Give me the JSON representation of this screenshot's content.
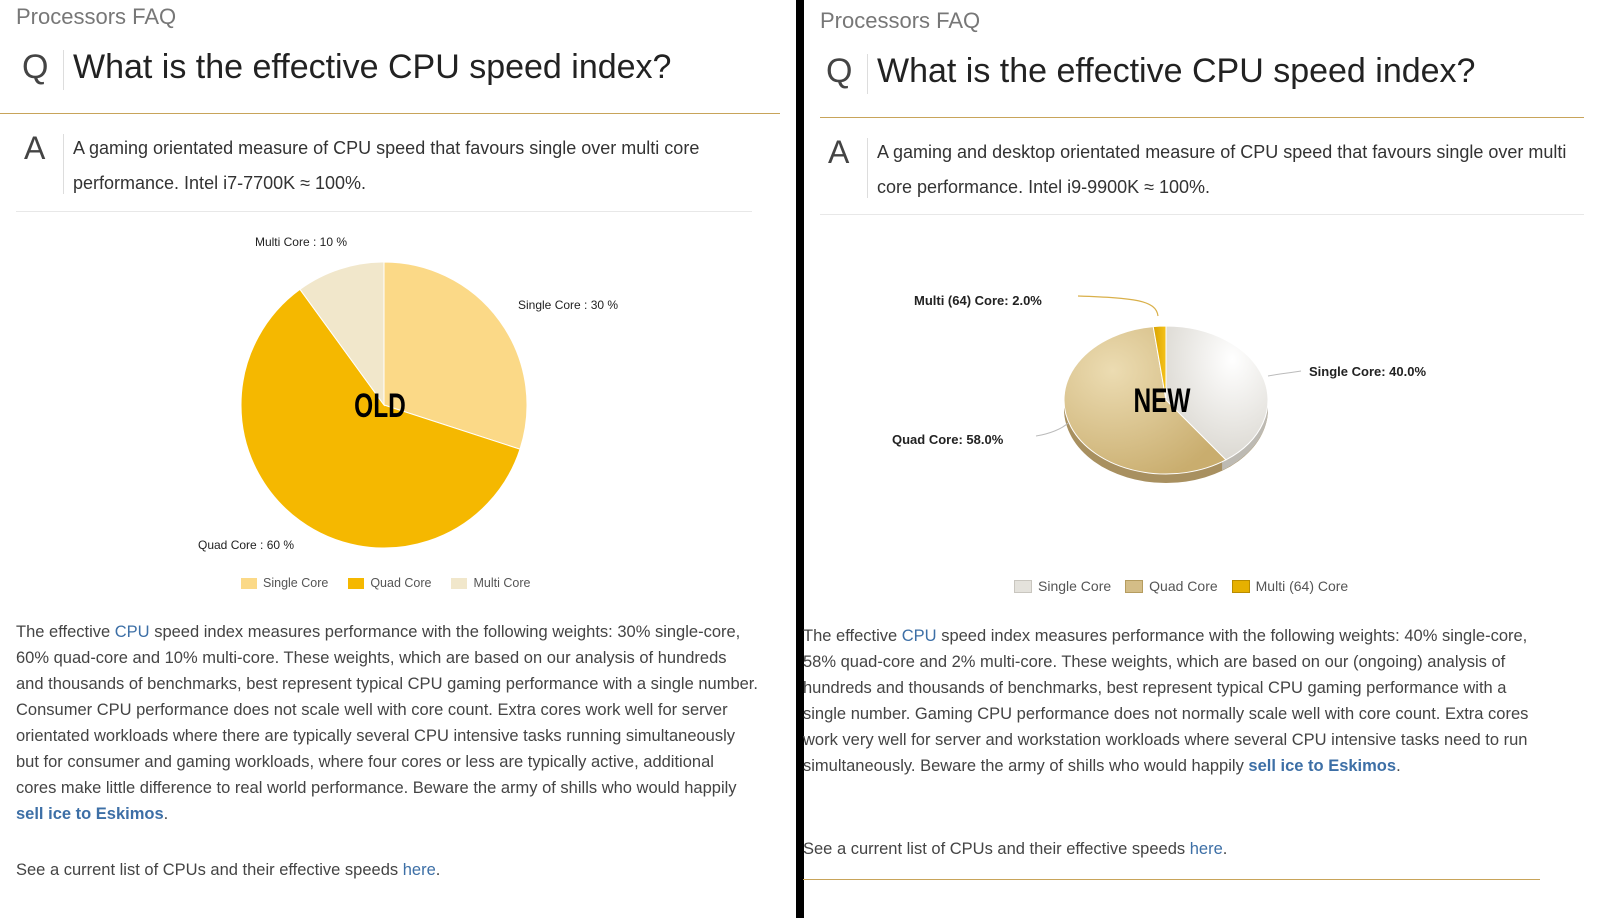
{
  "left": {
    "breadcrumb": "Processors FAQ",
    "q_letter": "Q",
    "question": "What is the effective CPU speed index?",
    "a_letter": "A",
    "answer": "A gaming orientated measure of CPU speed that favours single over multi core performance. Intel i7-7700K ≈ 100%.",
    "body_before_cpu": "The effective ",
    "cpu_link": "CPU",
    "body_after_cpu": " speed index measures performance with the following weights: 30% single-core, 60% quad-core and 10% multi-core. These weights, which are based on our analysis of hundreds and thousands of benchmarks, best represent typical CPU gaming performance with a single number. Consumer CPU performance does not scale well with core count. Extra cores work well for server orientated workloads where there are typically several CPU intensive tasks running simultaneously but for consumer and gaming workloads, where four cores or less are typically active, additional cores make little difference to real world performance. Beware the army of shills who would happily ",
    "eskimo_link": "sell ice to Eskimos",
    "body_end": ".",
    "see_text": "See a current list of CPUs and their effective speeds ",
    "here_link": "here",
    "see_end": ".",
    "colors": {
      "single": "#fbd987",
      "quad": "#f5b800",
      "multi": "#f1e7cb"
    }
  },
  "right": {
    "breadcrumb": "Processors FAQ",
    "q_letter": "Q",
    "question": "What is the effective CPU speed index?",
    "a_letter": "A",
    "answer": "A gaming and desktop orientated measure of CPU speed that favours single over multi core performance. Intel i9-9900K ≈ 100%.",
    "body_before_cpu": "The effective ",
    "cpu_link": "CPU",
    "body_after_cpu": " speed index measures performance with the following weights: 40% single-core, 58% quad-core and 2% multi-core. These weights, which are based on our (ongoing) analysis of hundreds and thousands of benchmarks, best represent typical CPU gaming performance with a single number. Gaming CPU performance does not normally scale well with core count. Extra cores work very well for server and workstation workloads where several CPU intensive tasks need to run simultaneously. Beware the army of shills who would happily ",
    "eskimo_link": "sell ice to Eskimos",
    "body_end": ".",
    "see_text": "See a current list of CPUs and their effective speeds ",
    "here_link": "here",
    "see_end": ".",
    "colors": {
      "single": "#e4e2dc",
      "quad": "#d4bd87",
      "multi": "#e6b000"
    }
  },
  "chart_data": [
    {
      "type": "pie",
      "overlay_label": "OLD",
      "categories": [
        "Single Core",
        "Quad Core",
        "Multi Core"
      ],
      "values": [
        30,
        60,
        10
      ],
      "data_labels": [
        "Single Core : 30 %",
        "Quad Core : 60 %",
        "Multi Core : 10 %"
      ],
      "legend": [
        "Single Core",
        "Quad Core",
        "Multi Core"
      ],
      "legend_position": "bottom"
    },
    {
      "type": "pie",
      "overlay_label": "NEW",
      "categories": [
        "Single Core",
        "Quad Core",
        "Multi (64) Core"
      ],
      "values": [
        40.0,
        58.0,
        2.0
      ],
      "data_labels": [
        "Single Core: 40.0%",
        "Quad Core: 58.0%",
        "Multi (64) Core: 2.0%"
      ],
      "legend": [
        "Single Core",
        "Quad Core",
        "Multi (64) Core"
      ],
      "legend_position": "bottom"
    }
  ]
}
